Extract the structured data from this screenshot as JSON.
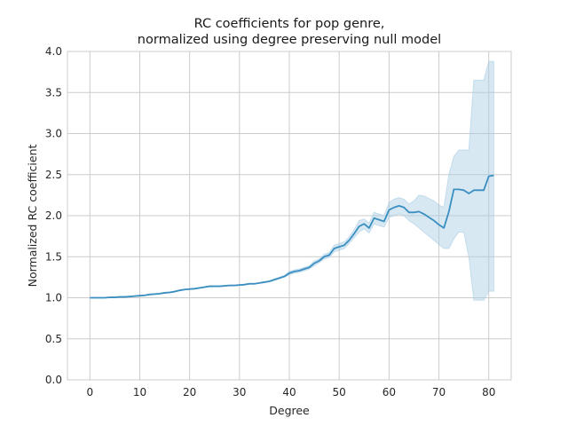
{
  "chart_data": {
    "type": "line",
    "title_line1": "RC coefficients for pop genre,",
    "title_line2": "normalized using degree preserving null model",
    "xlabel": "Degree",
    "ylabel": "Normalized RC coefficient",
    "xlim": [
      -4.5,
      84.5
    ],
    "ylim": [
      0,
      4.0
    ],
    "xticks": [
      0,
      10,
      20,
      30,
      40,
      50,
      60,
      70,
      80
    ],
    "yticks": [
      0.0,
      0.5,
      1.0,
      1.5,
      2.0,
      2.5,
      3.0,
      3.5,
      4.0
    ],
    "ytick_labels": [
      "0.0",
      "0.5",
      "1.0",
      "1.5",
      "2.0",
      "2.5",
      "3.0",
      "3.5",
      "4.0"
    ],
    "grid": true,
    "line_color": "#3a8fc0",
    "band_color": "#a9cde4",
    "series": [
      {
        "x": [
          0,
          1,
          2,
          3,
          4,
          5,
          6,
          7,
          8,
          9,
          10,
          11,
          12,
          13,
          14,
          15,
          16,
          17,
          18,
          19,
          20,
          21,
          22,
          23,
          24,
          25,
          26,
          27,
          28,
          29,
          30,
          31,
          32,
          33,
          34,
          35,
          36,
          37,
          38,
          39,
          40,
          41,
          42,
          43,
          44,
          45,
          46,
          47,
          48,
          49,
          50,
          51,
          52,
          53,
          54,
          55,
          56,
          57,
          58,
          59,
          60,
          61,
          62,
          63,
          64,
          65,
          66,
          67,
          68,
          69,
          70,
          71,
          72,
          73,
          74,
          75,
          76,
          77,
          78,
          79,
          80,
          81
        ],
        "y": [
          1.0,
          1.0,
          1.0,
          1.0,
          1.005,
          1.005,
          1.01,
          1.01,
          1.015,
          1.02,
          1.025,
          1.03,
          1.04,
          1.045,
          1.05,
          1.06,
          1.065,
          1.075,
          1.09,
          1.1,
          1.105,
          1.11,
          1.12,
          1.13,
          1.14,
          1.14,
          1.14,
          1.145,
          1.15,
          1.15,
          1.155,
          1.16,
          1.17,
          1.17,
          1.18,
          1.19,
          1.2,
          1.22,
          1.24,
          1.26,
          1.3,
          1.32,
          1.33,
          1.35,
          1.37,
          1.42,
          1.45,
          1.5,
          1.52,
          1.6,
          1.62,
          1.64,
          1.7,
          1.78,
          1.87,
          1.9,
          1.85,
          1.97,
          1.95,
          1.93,
          2.07,
          2.1,
          2.12,
          2.1,
          2.04,
          2.04,
          2.05,
          2.02,
          1.98,
          1.94,
          1.89,
          1.85,
          2.05,
          2.32,
          2.32,
          2.31,
          2.27,
          2.31,
          2.31,
          2.31,
          2.48,
          2.49
        ],
        "lower": [
          1.0,
          1.0,
          1.0,
          1.0,
          1.0,
          1.0,
          1.005,
          1.005,
          1.01,
          1.015,
          1.02,
          1.025,
          1.035,
          1.04,
          1.045,
          1.055,
          1.06,
          1.07,
          1.085,
          1.095,
          1.1,
          1.105,
          1.115,
          1.125,
          1.135,
          1.135,
          1.135,
          1.14,
          1.145,
          1.145,
          1.15,
          1.155,
          1.165,
          1.165,
          1.175,
          1.185,
          1.195,
          1.21,
          1.23,
          1.25,
          1.28,
          1.3,
          1.31,
          1.33,
          1.35,
          1.39,
          1.43,
          1.47,
          1.49,
          1.56,
          1.58,
          1.6,
          1.66,
          1.73,
          1.8,
          1.84,
          1.79,
          1.9,
          1.88,
          1.86,
          1.98,
          2.0,
          2.02,
          2.0,
          1.94,
          1.9,
          1.85,
          1.8,
          1.75,
          1.7,
          1.65,
          1.6,
          1.6,
          1.72,
          1.8,
          1.8,
          1.5,
          0.97,
          0.97,
          0.97,
          1.08,
          1.08
        ],
        "upper": [
          1.0,
          1.0,
          1.0,
          1.0,
          1.01,
          1.01,
          1.015,
          1.015,
          1.02,
          1.025,
          1.03,
          1.035,
          1.045,
          1.05,
          1.055,
          1.065,
          1.07,
          1.08,
          1.095,
          1.105,
          1.11,
          1.115,
          1.125,
          1.135,
          1.145,
          1.145,
          1.145,
          1.15,
          1.155,
          1.155,
          1.16,
          1.165,
          1.175,
          1.175,
          1.185,
          1.195,
          1.205,
          1.23,
          1.25,
          1.27,
          1.32,
          1.34,
          1.35,
          1.37,
          1.39,
          1.45,
          1.47,
          1.53,
          1.55,
          1.64,
          1.66,
          1.68,
          1.74,
          1.83,
          1.94,
          1.96,
          1.91,
          2.04,
          2.02,
          2.0,
          2.16,
          2.2,
          2.22,
          2.2,
          2.14,
          2.18,
          2.25,
          2.24,
          2.21,
          2.18,
          2.13,
          2.1,
          2.5,
          2.72,
          2.8,
          2.8,
          2.8,
          3.65,
          3.65,
          3.65,
          3.88,
          3.88
        ]
      }
    ]
  }
}
